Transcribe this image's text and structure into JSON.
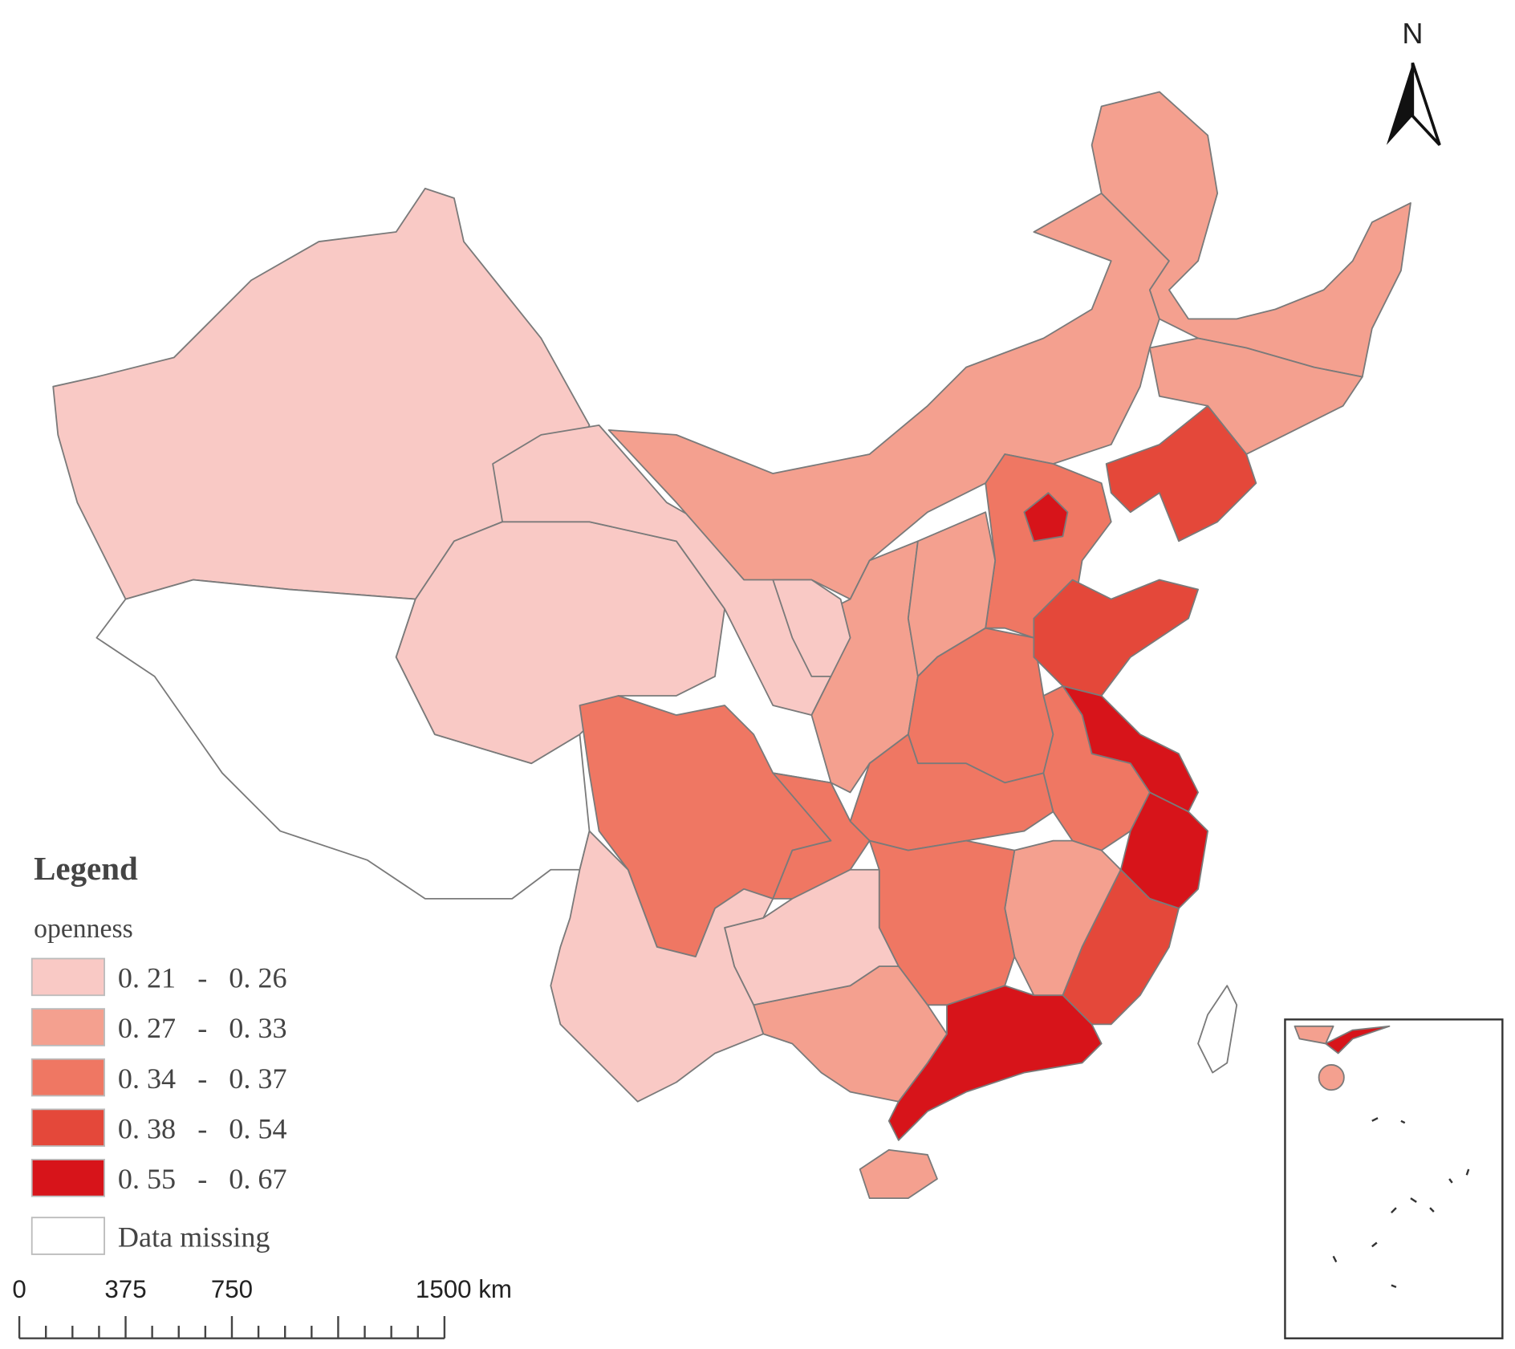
{
  "north": "N",
  "legend": {
    "title": "Legend",
    "field": "openness",
    "classes": [
      {
        "label": "0. 21   -   0. 26",
        "color": "#f9c9c5"
      },
      {
        "label": "0. 27   -   0. 33",
        "color": "#f4a08f"
      },
      {
        "label": "0. 34   -   0. 37",
        "color": "#ef7763"
      },
      {
        "label": "0. 38   -   0. 54",
        "color": "#e4483a"
      },
      {
        "label": "0. 55   -   0. 67",
        "color": "#d7141a"
      }
    ],
    "missing": "Data missing"
  },
  "scale_bar": {
    "labels": [
      "0",
      "375",
      "750",
      "1500 km"
    ]
  }
}
